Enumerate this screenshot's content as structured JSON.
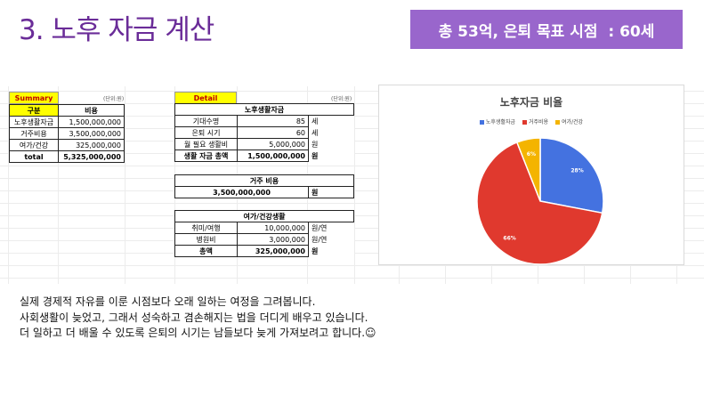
{
  "title": "3. 노후 자금 계산",
  "banner": "총 53억, 은퇴 목표 시점  : 60세",
  "summary": {
    "tag": "Summary",
    "unit": "(단위:원)",
    "headers": [
      "구분",
      "비용"
    ],
    "rows": [
      [
        "노후생활자금",
        "1,500,000,000"
      ],
      [
        "거주비용",
        "3,500,000,000"
      ],
      [
        "여가/건강",
        "325,000,000"
      ]
    ],
    "total_label": "total",
    "total_value": "5,325,000,000"
  },
  "detail": {
    "tag": "Detail",
    "unit": "(단위:원)",
    "living": {
      "header": "노후생활자금",
      "rows": [
        [
          "기대수명",
          "85",
          "세"
        ],
        [
          "은퇴 시기",
          "60",
          "세"
        ],
        [
          "월 필요 생활비",
          "5,000,000",
          "원"
        ]
      ],
      "total_label": "생활 자금 총액",
      "total_value": "1,500,000,000",
      "total_unit": "원"
    },
    "housing": {
      "header": "거주 비용",
      "value": "3,500,000,000",
      "unit": "원"
    },
    "leisure": {
      "header": "여가/건강생활",
      "rows": [
        [
          "취미/여행",
          "10,000,000",
          "원/연"
        ],
        [
          "병원비",
          "3,000,000",
          "원/연"
        ]
      ],
      "total_label": "총액",
      "total_value": "325,000,000",
      "total_unit": "원"
    }
  },
  "chart_data": {
    "type": "pie",
    "title": "노후자금 비율",
    "categories": [
      "노후생활자금",
      "거주비용",
      "여가/건강"
    ],
    "values": [
      28,
      66,
      6
    ],
    "labels": [
      "28%",
      "66%",
      "6%"
    ],
    "colors": [
      "#4472e0",
      "#e0392e",
      "#f4b400"
    ],
    "legend": "top"
  },
  "caption": [
    "실제 경제적 자유를 이룬 시점보다 오래 일하는 여정을 그려봅니다.",
    "사회생활이 늦었고, 그래서 성숙하고 겸손해지는 법을 더디게 배우고 있습니다.",
    "더 일하고 더 배울 수 있도록 은퇴의 시기는 남들보다 늦게 가져보려고 합니다.☺"
  ]
}
